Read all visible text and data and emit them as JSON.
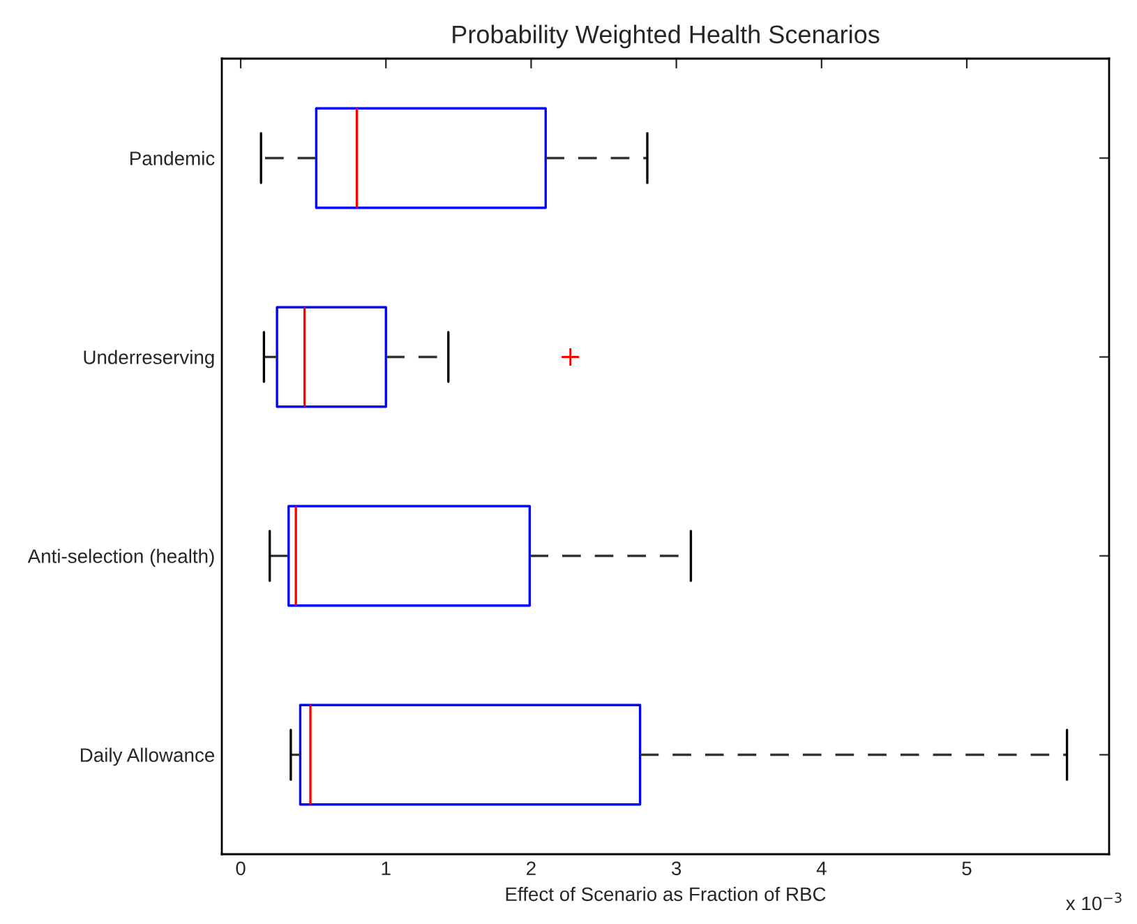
{
  "chart_data": {
    "type": "box",
    "title": "Probability Weighted Health Scenarios",
    "xlabel": "Effect of Scenario as Fraction of RBC",
    "orientation": "horizontal",
    "categories": [
      "Pandemic",
      "Underreserving",
      "Anti-selection (health)",
      "Daily Allowance"
    ],
    "series": [
      {
        "color": "#0000ff",
        "boxes": [
          {
            "low": 0.14,
            "q1": 0.52,
            "median": 0.8,
            "q3": 2.1,
            "high": 2.8
          },
          {
            "low": 0.16,
            "q1": 0.25,
            "median": 0.44,
            "q3": 1.0,
            "high": 1.43,
            "outliers": [
              2.27
            ]
          },
          {
            "low": 0.2,
            "q1": 0.33,
            "median": 0.38,
            "q3": 1.99,
            "high": 3.1
          },
          {
            "low": 0.345,
            "q1": 0.41,
            "median": 0.48,
            "q3": 2.75,
            "high": 5.69
          }
        ]
      }
    ],
    "xlim": [
      -0.13,
      5.98
    ],
    "xticks": [
      0,
      1,
      2,
      3,
      4,
      5
    ],
    "line_style": "dashed",
    "grid": false,
    "annotations": [
      "x 10$^{−3}$"
    ]
  }
}
